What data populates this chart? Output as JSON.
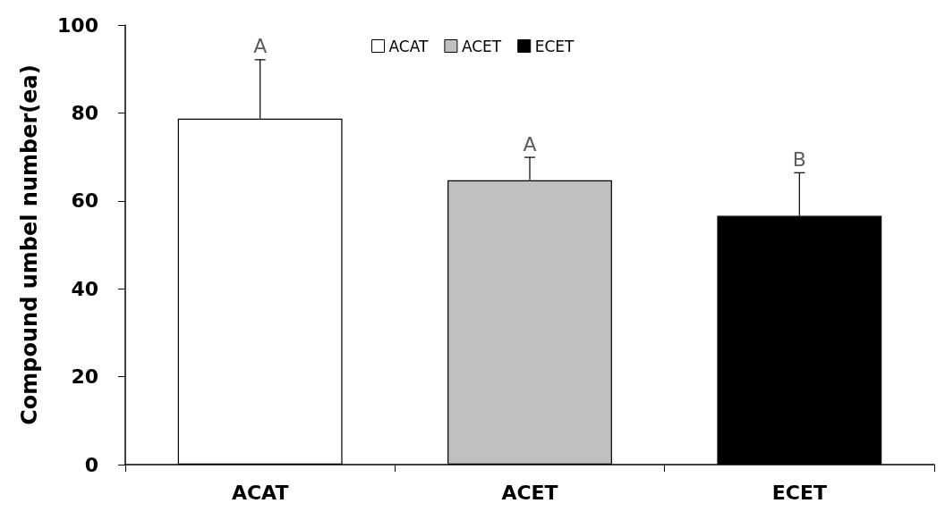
{
  "chart_data": {
    "type": "bar",
    "ylabel": "Compound umbel number(ea)",
    "categories": [
      "ACAT",
      "ACET",
      "ECET"
    ],
    "series": [
      {
        "name": "ACAT",
        "color": "#ffffff",
        "values": [
          78.7,
          null,
          null
        ],
        "errors": [
          [
            78.7,
            92.1
          ],
          null,
          null
        ]
      },
      {
        "name": "ACET",
        "color": "#c0c0c0",
        "values": [
          null,
          64.7,
          null
        ],
        "errors": [
          null,
          [
            64.7,
            69.9
          ],
          null
        ]
      },
      {
        "name": "ECET",
        "color": "#000000",
        "values": [
          null,
          null,
          56.6
        ],
        "errors": [
          null,
          null,
          [
            56.6,
            66.4
          ]
        ]
      }
    ],
    "ylim": [
      0,
      100
    ],
    "yticks": [
      0,
      20,
      40,
      60,
      80,
      100
    ],
    "grid": false,
    "legend": "top",
    "annotations": [
      {
        "text": "A",
        "x": "ACAT",
        "y": 92.1
      },
      {
        "text": "A",
        "x": "ACET",
        "y": 69.9
      },
      {
        "text": "B",
        "x": "ECET",
        "y": 66.4
      }
    ]
  }
}
